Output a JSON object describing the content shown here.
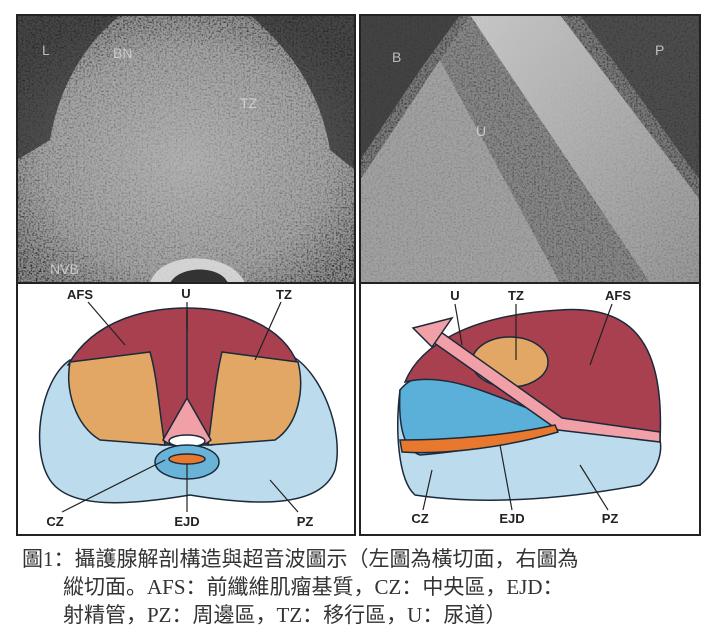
{
  "panels": [
    {
      "labels": [
        "L",
        "BN",
        "TZ",
        "NVB"
      ]
    },
    {
      "labels": [
        "B",
        "P",
        "U"
      ]
    },
    {
      "labels": [
        "AFS",
        "U",
        "TZ",
        "CZ",
        "EJD",
        "PZ"
      ]
    },
    {
      "labels": [
        "U",
        "TZ",
        "AFS",
        "CZ",
        "EJD",
        "PZ"
      ]
    }
  ],
  "caption": {
    "lines": [
      "圖1：攝護腺解剖構造與超音波圖示（左圖為橫切面，右圖為",
      "縱切面。AFS：前纖維肌瘤基質，CZ：中央區，EJD：",
      "射精管，PZ：周邊區，TZ：移行區，U：尿道）"
    ]
  }
}
